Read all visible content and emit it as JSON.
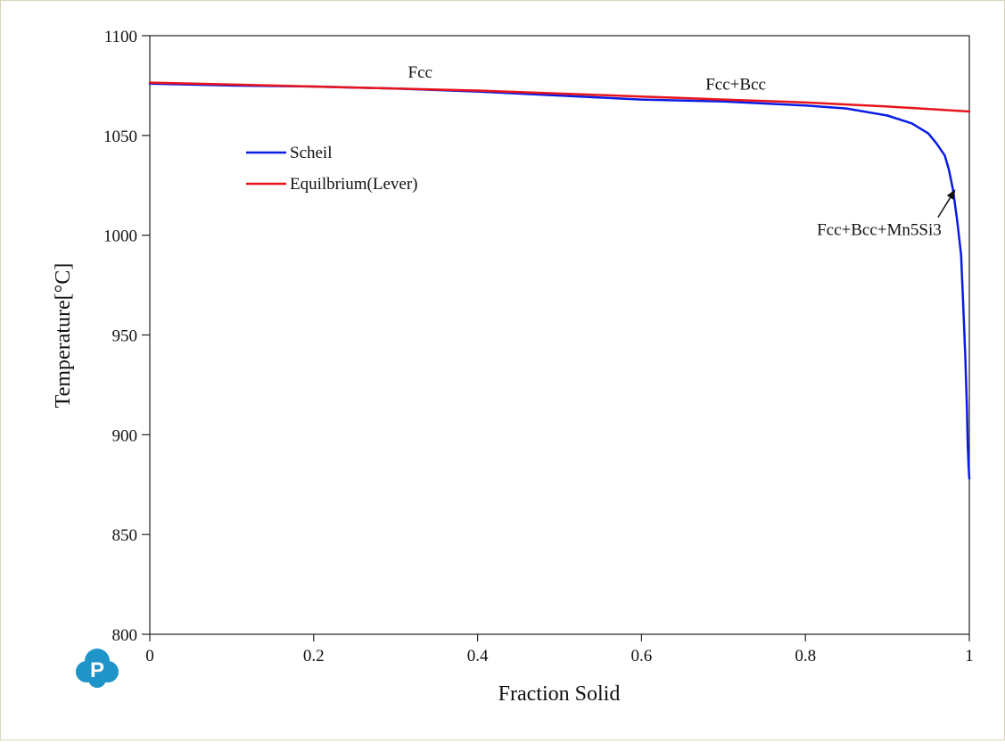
{
  "chart_data": {
    "type": "line",
    "xlabel": "Fraction Solid",
    "ylabel": "Temperature[°C]",
    "xlim": [
      0,
      1
    ],
    "ylim": [
      800,
      1100
    ],
    "xticks": [
      0,
      0.2,
      0.4,
      0.6,
      0.8,
      1
    ],
    "xtick_labels": [
      "0",
      "0.2",
      "0.4",
      "0.6",
      "0.8",
      "1"
    ],
    "yticks": [
      800,
      850,
      900,
      950,
      1000,
      1050,
      1100
    ],
    "ytick_labels": [
      "800",
      "850",
      "900",
      "950",
      "1000",
      "1050",
      "1100"
    ],
    "grid": false,
    "legend_position": "upper-left",
    "series": [
      {
        "name": "Scheil",
        "color": "#0a1be6",
        "x": [
          0,
          0.1,
          0.2,
          0.3,
          0.4,
          0.5,
          0.6,
          0.7,
          0.8,
          0.85,
          0.9,
          0.93,
          0.95,
          0.96,
          0.97,
          0.975,
          0.98,
          0.985,
          0.99,
          0.993,
          0.995,
          0.997,
          0.998,
          0.999,
          1.0
        ],
        "y": [
          1076,
          1075,
          1074.5,
          1073.5,
          1072,
          1070,
          1068,
          1067,
          1065,
          1063.5,
          1060,
          1056,
          1051,
          1046,
          1040,
          1033,
          1023,
          1008,
          990,
          960,
          940,
          915,
          895,
          885,
          878
        ]
      },
      {
        "name": "Equilbrium(Lever)",
        "color": "#e8141c",
        "x": [
          0,
          0.1,
          0.2,
          0.3,
          0.4,
          0.5,
          0.6,
          0.7,
          0.8,
          0.9,
          1.0
        ],
        "y": [
          1076.5,
          1075.5,
          1074.5,
          1073.5,
          1072.5,
          1071,
          1069.5,
          1068,
          1066.5,
          1064.5,
          1062
        ]
      }
    ],
    "annotations": [
      {
        "text": "Fcc",
        "x": 0.33,
        "y": 1079
      },
      {
        "text": "Fcc+Bcc",
        "x": 0.715,
        "y": 1073
      },
      {
        "text": "Fcc+Bcc+Mn5Si3",
        "x": 0.89,
        "y": 1000,
        "arrow_to": {
          "x": 0.983,
          "y": 1023
        }
      }
    ]
  },
  "logo": {
    "letter": "P",
    "color": "#1e94c9"
  }
}
